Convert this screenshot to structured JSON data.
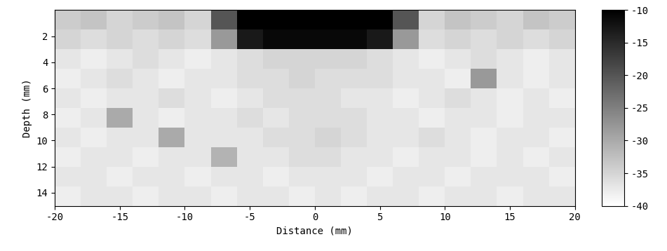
{
  "chart_data": {
    "type": "heatmap",
    "x_label": "Distance (mm)",
    "y_label": "Depth (mm)",
    "x": [
      -19,
      -17,
      -15,
      -13,
      -11,
      -9,
      -7,
      -5,
      -3,
      -1,
      1,
      3,
      5,
      7,
      9,
      11,
      13,
      15,
      17,
      19
    ],
    "y": [
      0.75,
      2.25,
      3.75,
      5.25,
      6.75,
      8.25,
      9.75,
      11.25,
      12.75,
      14.25
    ],
    "cells": [
      [
        -34,
        -33,
        -35,
        -34,
        -33,
        -35,
        -20,
        -10,
        -10,
        -10,
        -10,
        -10,
        -10,
        -20,
        -35,
        -33,
        -34,
        -35,
        -33,
        -34
      ],
      [
        -35,
        -36,
        -35,
        -36,
        -35,
        -36,
        -28,
        -13,
        -11,
        -11,
        -11,
        -11,
        -13,
        -28,
        -36,
        -35,
        -36,
        -35,
        -36,
        -35
      ],
      [
        -37,
        -38,
        -37,
        -36,
        -37,
        -38,
        -37,
        -36,
        -35,
        -35,
        -35,
        -35,
        -36,
        -37,
        -38,
        -37,
        -36,
        -37,
        -38,
        -37
      ],
      [
        -38,
        -37,
        -36,
        -37,
        -38,
        -37,
        -37,
        -36,
        -36,
        -35,
        -36,
        -36,
        -36,
        -37,
        -37,
        -38,
        -28,
        -37,
        -38,
        -37
      ],
      [
        -37,
        -38,
        -37,
        -37,
        -36,
        -37,
        -38,
        -37,
        -36,
        -36,
        -36,
        -37,
        -37,
        -38,
        -37,
        -36,
        -37,
        -38,
        -37,
        -38
      ],
      [
        -38,
        -37,
        -30,
        -37,
        -38,
        -37,
        -37,
        -36,
        -37,
        -36,
        -36,
        -36,
        -37,
        -37,
        -38,
        -37,
        -37,
        -38,
        -37,
        -37
      ],
      [
        -37,
        -38,
        -37,
        -37,
        -30,
        -37,
        -37,
        -37,
        -36,
        -36,
        -35,
        -36,
        -37,
        -37,
        -36,
        -37,
        -38,
        -37,
        -37,
        -38
      ],
      [
        -38,
        -37,
        -37,
        -38,
        -37,
        -37,
        -31,
        -37,
        -37,
        -36,
        -36,
        -37,
        -37,
        -38,
        -37,
        -37,
        -38,
        -37,
        -38,
        -37
      ],
      [
        -37,
        -37,
        -38,
        -37,
        -37,
        -38,
        -37,
        -37,
        -38,
        -37,
        -37,
        -37,
        -38,
        -37,
        -37,
        -38,
        -37,
        -37,
        -37,
        -38
      ],
      [
        -38,
        -37,
        -37,
        -38,
        -37,
        -37,
        -38,
        -37,
        -37,
        -38,
        -37,
        -38,
        -37,
        -37,
        -38,
        -37,
        -37,
        -38,
        -37,
        -37
      ]
    ],
    "xlim": [
      -20,
      20
    ],
    "ylim": [
      15,
      0
    ],
    "xticks": [
      -20,
      -15,
      -10,
      -5,
      0,
      5,
      10,
      15,
      20
    ],
    "yticks": [
      2,
      4,
      6,
      8,
      10,
      12,
      14
    ],
    "colorbar": {
      "range": [
        -40,
        -10
      ],
      "ticks": [
        -10,
        -15,
        -20,
        -25,
        -30,
        -35,
        -40
      ]
    }
  }
}
